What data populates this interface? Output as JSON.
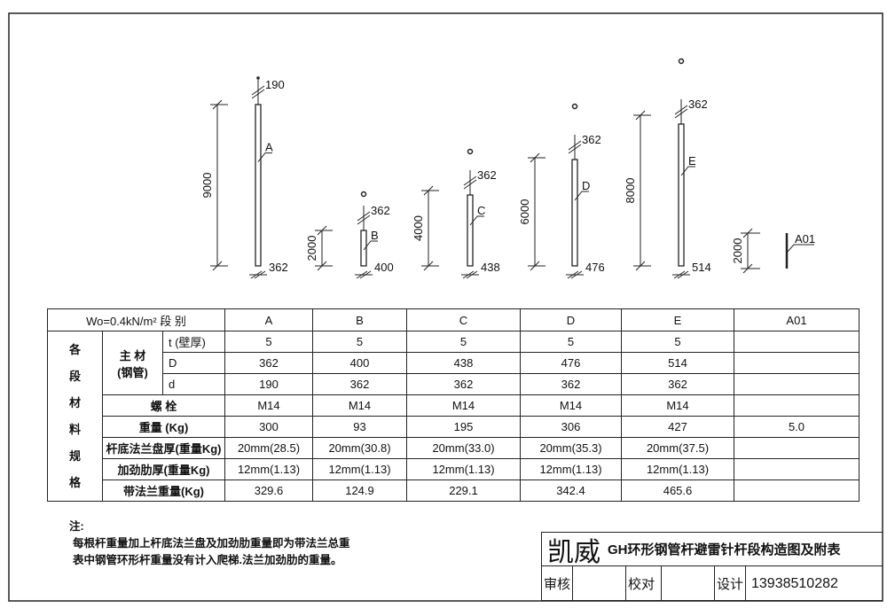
{
  "drawing": {
    "poles": [
      {
        "label": "A",
        "height": "9000",
        "top_dia": "190",
        "bottom_dia": "362"
      },
      {
        "label": "B",
        "height": "2000",
        "top_dia": "362",
        "bottom_dia": "400"
      },
      {
        "label": "C",
        "height": "4000",
        "top_dia": "362",
        "bottom_dia": "438"
      },
      {
        "label": "D",
        "height": "6000",
        "top_dia": "362",
        "bottom_dia": "476"
      },
      {
        "label": "E",
        "height": "8000",
        "top_dia": "362",
        "bottom_dia": "514"
      },
      {
        "label": "A01",
        "height": "2000"
      }
    ]
  },
  "table": {
    "header_left": "Wo=0.4kN/m² 段 别",
    "columns": [
      "A",
      "B",
      "C",
      "D",
      "E",
      "A01"
    ],
    "group_label": "各段材料规格",
    "main_material": "主 材",
    "main_material_sub": "(钢管)",
    "rows": [
      {
        "label": "t (壁厚)",
        "values": [
          "5",
          "5",
          "5",
          "5",
          "5",
          ""
        ]
      },
      {
        "label": "D",
        "values": [
          "362",
          "400",
          "438",
          "476",
          "514",
          ""
        ]
      },
      {
        "label": "d",
        "values": [
          "190",
          "362",
          "362",
          "362",
          "362",
          ""
        ]
      },
      {
        "label": "螺 栓",
        "values": [
          "M14",
          "M14",
          "M14",
          "M14",
          "M14",
          ""
        ]
      },
      {
        "label": "重量    (Kg)",
        "values": [
          "300",
          "93",
          "195",
          "306",
          "427",
          "5.0"
        ]
      },
      {
        "label": "杆底法兰盘厚(重量Kg)",
        "values": [
          "20mm(28.5)",
          "20mm(30.8)",
          "20mm(33.0)",
          "20mm(35.3)",
          "20mm(37.5)",
          ""
        ]
      },
      {
        "label": "加劲肋厚(重量Kg)",
        "values": [
          "12mm(1.13)",
          "12mm(1.13)",
          "12mm(1.13)",
          "12mm(1.13)",
          "12mm(1.13)",
          ""
        ]
      },
      {
        "label": "带法兰重量(Kg)",
        "values": [
          "329.6",
          "124.9",
          "229.1",
          "342.4",
          "465.6",
          ""
        ]
      }
    ]
  },
  "notes": {
    "title": "注:",
    "lines": [
      "每根杆重量加上杆底法兰盘及加劲肋重量即为带法兰总重",
      "表中钢管环形杆重量没有计入爬梯.法兰加劲肋的重量。"
    ]
  },
  "title_block": {
    "brand": "凯威",
    "title": "GH环形钢管杆避雷针杆段构造图及附表",
    "review": "审核",
    "check": "校对",
    "design": "设计",
    "phone": "13938510282"
  }
}
